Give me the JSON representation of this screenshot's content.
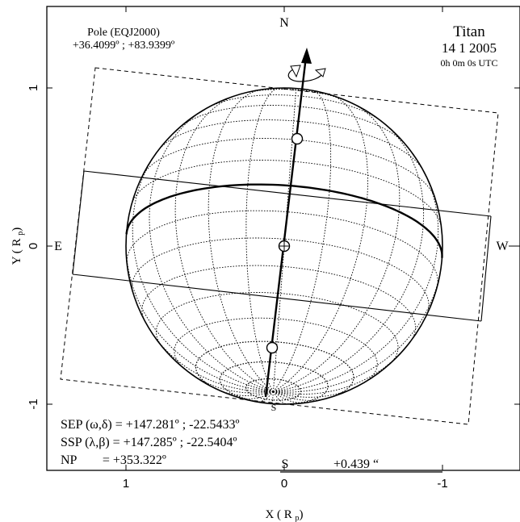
{
  "header": {
    "pole_title": "Pole (EQJ2000)",
    "pole_coords": "+36.4099º ; +83.9399º",
    "body_name": "Titan",
    "date": "14 1 2005",
    "time": "0h 0m 0s UTC"
  },
  "compass": {
    "north": "N",
    "south": "S",
    "east": "E",
    "west": "W"
  },
  "axes": {
    "x_label": "X ( R ",
    "x_sub": "p",
    "x_close": ")",
    "y_label": "Y ( R ",
    "y_sub": "p",
    "y_close": ")",
    "x_ticks": [
      "1",
      "0",
      "-1"
    ],
    "y_ticks": [
      "1",
      "0",
      "-1"
    ]
  },
  "info": {
    "sep": "SEP (ω,δ) = +147.281º ; -22.5433º",
    "ssp": "SSP (λ,β) = +147.285º ; -22.5404º",
    "np": "NP        = +353.322º"
  },
  "scale_bar": {
    "label_s": "S",
    "value": "+0.439 “"
  },
  "globe": {
    "pole_angle_deg": 353.322,
    "sub_observer_lat_deg": -22.5433,
    "latitudes": [
      -80,
      -70,
      -60,
      -50,
      -40,
      -30,
      -20,
      -10,
      0,
      10,
      20,
      30,
      40,
      50,
      60,
      70,
      80
    ],
    "longitude_step_deg": 15
  }
}
